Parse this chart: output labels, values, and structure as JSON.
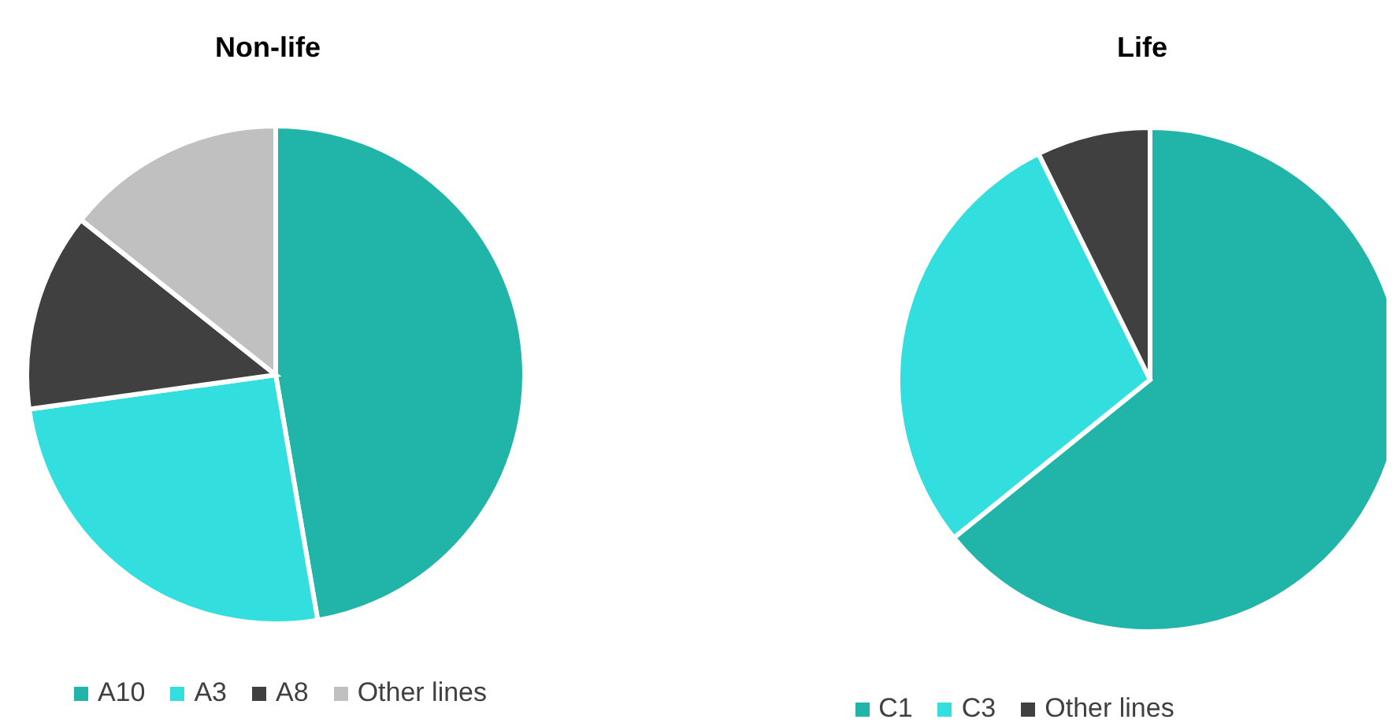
{
  "chart_data": [
    {
      "type": "pie",
      "title": "Non-life",
      "categories": [
        "A10",
        "A3",
        "A8",
        "Other lines"
      ],
      "values": [
        47.3,
        25.5,
        12.9,
        14.3
      ],
      "colors": [
        "#20b5a8",
        "#33dede",
        "#404040",
        "#c0c0c0"
      ],
      "legend": "bottom"
    },
    {
      "type": "pie",
      "title": "Life",
      "categories": [
        "C1",
        "C3",
        "Other lines"
      ],
      "values": [
        64.2,
        28.5,
        7.3
      ],
      "colors": [
        "#20b5a8",
        "#33dede",
        "#404040"
      ],
      "legend": "bottom"
    }
  ]
}
